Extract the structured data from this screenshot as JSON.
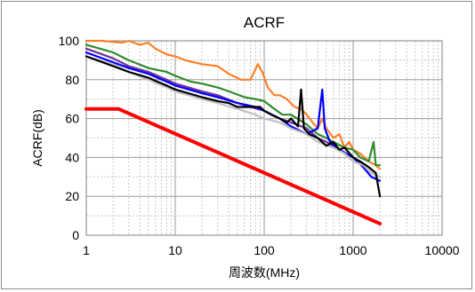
{
  "chart_data": {
    "type": "line",
    "title": "ACRF",
    "xlabel": "周波数(MHz)",
    "ylabel": "ACRF(dB)",
    "xscale": "log",
    "xlim": [
      1,
      10000
    ],
    "ylim": [
      0,
      100
    ],
    "x_ticks": [
      "1",
      "10",
      "100",
      "1000",
      "10000"
    ],
    "y_ticks": [
      "0",
      "20",
      "40",
      "60",
      "80",
      "100"
    ],
    "grid": true,
    "legend": "none",
    "series": [
      {
        "color": "#ff0000",
        "points": [
          [
            1,
            65
          ],
          [
            2.3,
            65
          ],
          [
            2000,
            6
          ]
        ]
      },
      {
        "color": "#ff7f27",
        "points": [
          [
            1,
            100
          ],
          [
            1.5,
            100
          ],
          [
            2.5,
            99
          ],
          [
            3,
            100
          ],
          [
            4,
            98
          ],
          [
            5,
            99
          ],
          [
            6,
            96
          ],
          [
            8,
            93
          ],
          [
            10,
            92
          ],
          [
            13,
            90
          ],
          [
            20,
            88
          ],
          [
            30,
            87
          ],
          [
            40,
            83
          ],
          [
            55,
            80
          ],
          [
            70,
            80
          ],
          [
            85,
            88
          ],
          [
            95,
            84
          ],
          [
            110,
            76
          ],
          [
            130,
            72
          ],
          [
            150,
            72
          ],
          [
            180,
            70
          ],
          [
            220,
            66
          ],
          [
            260,
            65
          ],
          [
            300,
            62
          ],
          [
            350,
            58
          ],
          [
            400,
            55
          ],
          [
            450,
            60
          ],
          [
            500,
            55
          ],
          [
            600,
            50
          ],
          [
            700,
            52
          ],
          [
            800,
            45
          ],
          [
            900,
            48
          ],
          [
            1000,
            44
          ],
          [
            1200,
            42
          ],
          [
            1500,
            38
          ],
          [
            1800,
            36
          ],
          [
            2000,
            34
          ]
        ]
      },
      {
        "color": "#2e8b2e",
        "points": [
          [
            1,
            98
          ],
          [
            2,
            94
          ],
          [
            3,
            90
          ],
          [
            5,
            86
          ],
          [
            8,
            84
          ],
          [
            10,
            82
          ],
          [
            15,
            79
          ],
          [
            20,
            78
          ],
          [
            30,
            76
          ],
          [
            40,
            74
          ],
          [
            60,
            71
          ],
          [
            80,
            70
          ],
          [
            100,
            69
          ],
          [
            130,
            65
          ],
          [
            160,
            62
          ],
          [
            200,
            62
          ],
          [
            300,
            57
          ],
          [
            400,
            52
          ],
          [
            500,
            50
          ],
          [
            600,
            48
          ],
          [
            800,
            45
          ],
          [
            1000,
            44
          ],
          [
            1200,
            40
          ],
          [
            1500,
            38
          ],
          [
            1700,
            48
          ],
          [
            1800,
            36
          ],
          [
            2000,
            36
          ]
        ]
      },
      {
        "color": "#7030a0",
        "points": [
          [
            1,
            96
          ],
          [
            2,
            91
          ],
          [
            3,
            87
          ],
          [
            5,
            84
          ],
          [
            8,
            80
          ],
          [
            10,
            78
          ],
          [
            20,
            74
          ],
          [
            30,
            72
          ],
          [
            50,
            68
          ],
          [
            70,
            66
          ],
          [
            100,
            64
          ],
          [
            150,
            60
          ],
          [
            200,
            58
          ],
          [
            300,
            55
          ],
          [
            400,
            50
          ],
          [
            500,
            48
          ],
          [
            700,
            44
          ],
          [
            1000,
            40
          ],
          [
            1300,
            36
          ],
          [
            1600,
            32
          ],
          [
            2000,
            30
          ]
        ]
      },
      {
        "color": "#0000ff",
        "points": [
          [
            1,
            94
          ],
          [
            2,
            89
          ],
          [
            3,
            86
          ],
          [
            5,
            83
          ],
          [
            8,
            79
          ],
          [
            10,
            77
          ],
          [
            20,
            73
          ],
          [
            30,
            71
          ],
          [
            50,
            68
          ],
          [
            80,
            66
          ],
          [
            100,
            64
          ],
          [
            150,
            60
          ],
          [
            200,
            56
          ],
          [
            300,
            52
          ],
          [
            400,
            55
          ],
          [
            450,
            75
          ],
          [
            480,
            55
          ],
          [
            550,
            48
          ],
          [
            700,
            44
          ],
          [
            1000,
            40
          ],
          [
            1300,
            35
          ],
          [
            1600,
            30
          ],
          [
            2000,
            28
          ]
        ]
      },
      {
        "color": "#c0c0c0",
        "points": [
          [
            1,
            92
          ],
          [
            2,
            88
          ],
          [
            3,
            84
          ],
          [
            5,
            80
          ],
          [
            8,
            76
          ],
          [
            10,
            74
          ],
          [
            20,
            70
          ],
          [
            30,
            68
          ],
          [
            50,
            65
          ],
          [
            80,
            62
          ],
          [
            100,
            60
          ],
          [
            150,
            58
          ],
          [
            200,
            55
          ],
          [
            300,
            52
          ],
          [
            400,
            48
          ],
          [
            600,
            45
          ],
          [
            800,
            42
          ],
          [
            1000,
            38
          ],
          [
            1300,
            36
          ],
          [
            1600,
            32
          ],
          [
            2000,
            30
          ]
        ]
      },
      {
        "color": "#000000",
        "points": [
          [
            1,
            92
          ],
          [
            2,
            87
          ],
          [
            3,
            84
          ],
          [
            5,
            81
          ],
          [
            8,
            77
          ],
          [
            10,
            75
          ],
          [
            20,
            71
          ],
          [
            30,
            69
          ],
          [
            40,
            68
          ],
          [
            50,
            66
          ],
          [
            70,
            66
          ],
          [
            90,
            66
          ],
          [
            100,
            64
          ],
          [
            120,
            62
          ],
          [
            150,
            60
          ],
          [
            180,
            58
          ],
          [
            200,
            60
          ],
          [
            240,
            56
          ],
          [
            260,
            75
          ],
          [
            280,
            55
          ],
          [
            320,
            52
          ],
          [
            400,
            50
          ],
          [
            500,
            46
          ],
          [
            600,
            48
          ],
          [
            700,
            44
          ],
          [
            800,
            45
          ],
          [
            1000,
            40
          ],
          [
            1200,
            38
          ],
          [
            1500,
            35
          ],
          [
            1800,
            32
          ],
          [
            2000,
            20
          ]
        ]
      }
    ]
  }
}
